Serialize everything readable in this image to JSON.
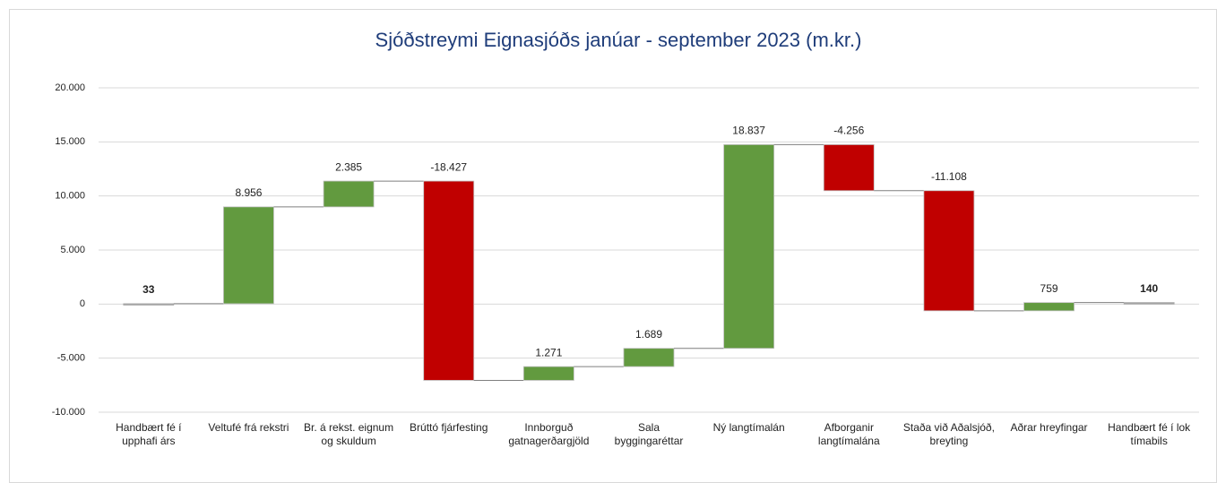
{
  "chart_data": {
    "type": "waterfall",
    "title": "Sjóðstreymi Eignasjóðs janúar - september 2023 (m.kr.)",
    "categories": [
      "Handbært fé í\nupphafi árs",
      "Veltufé frá rekstri",
      "Br. á rekst. eignum\nog skuldum",
      "Brúttó fjárfesting",
      "Innborguð\ngatnagerðargjöld",
      "Sala\nbyggingaréttar",
      "Ný langtímalán",
      "Afborganir\nlangtímalána",
      "Staða við Aðalsjóð,\nbreyting",
      "Aðrar hreyfingar",
      "Handbært fé í lok\ntímabils"
    ],
    "values": [
      33,
      8956,
      2385,
      -18427,
      1271,
      1689,
      18837,
      -4256,
      -11108,
      759,
      140
    ],
    "value_labels": [
      "33",
      "8.956",
      "2.385",
      "-18.427",
      "1.271",
      "1.689",
      "18.837",
      "-4.256",
      "-11.108",
      "759",
      "140"
    ],
    "measures": [
      "total",
      "relative",
      "relative",
      "relative",
      "relative",
      "relative",
      "relative",
      "relative",
      "relative",
      "relative",
      "total"
    ],
    "increase_color": "#629a3f",
    "decrease_color": "#c00000",
    "total_color": "#a6a6a6",
    "ylim": [
      -10000,
      20000
    ],
    "yticks": [
      {
        "value": -10000,
        "label": "-10.000"
      },
      {
        "value": -5000,
        "label": "-5.000"
      },
      0,
      {
        "value": 5000,
        "label": "5.000"
      },
      {
        "value": 10000,
        "label": "10.000"
      },
      {
        "value": 15000,
        "label": "15.000"
      },
      {
        "value": 20000,
        "label": "20.000"
      }
    ],
    "grid": true
  }
}
